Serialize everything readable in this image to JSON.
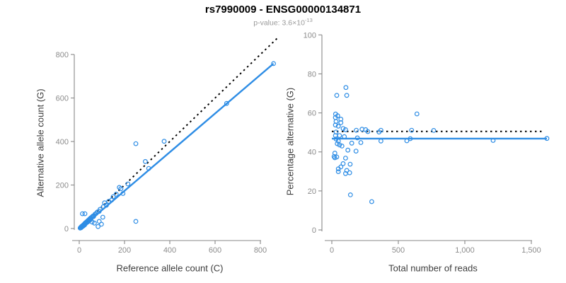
{
  "header": {
    "title": "rs7990009 - ENSG00000134871",
    "subtitle_prefix": "p-value: 3.6×10",
    "subtitle_exponent": "-13"
  },
  "colors": {
    "accent_blue": "#2E8DE5",
    "identity_black": "#000000",
    "axis_line": "#888888",
    "tick_label": "#8c8c8c",
    "axis_title": "#3d3d3d",
    "title": "#000000",
    "subtitle": "#9a9a9a",
    "background": "#ffffff"
  },
  "chart_data": [
    {
      "type": "scatter",
      "panel": "left",
      "title": "rs7990009 - ENSG00000134871",
      "subtitle": "p-value: 3.6×10^-13",
      "xlabel": "Reference allele count (C)",
      "ylabel": "Alternative allele count (G)",
      "xlim": [
        0,
        880
      ],
      "ylim": [
        0,
        880
      ],
      "grid": false,
      "xticks": {
        "values": [
          0,
          200,
          400,
          600,
          800
        ],
        "labels": [
          "0",
          "200",
          "400",
          "600",
          "800"
        ]
      },
      "yticks": {
        "values": [
          0,
          200,
          400,
          600,
          800
        ],
        "labels": [
          "0",
          "200",
          "400",
          "600",
          "800"
        ]
      },
      "point_color": "#2E8DE5",
      "points": [
        [
          4,
          2
        ],
        [
          6,
          5
        ],
        [
          8,
          4
        ],
        [
          9,
          8
        ],
        [
          11,
          7
        ],
        [
          12,
          11
        ],
        [
          14,
          9
        ],
        [
          15,
          13
        ],
        [
          17,
          15
        ],
        [
          18,
          12
        ],
        [
          20,
          18
        ],
        [
          22,
          20
        ],
        [
          24,
          17
        ],
        [
          25,
          24
        ],
        [
          27,
          22
        ],
        [
          28,
          27
        ],
        [
          30,
          25
        ],
        [
          32,
          30
        ],
        [
          34,
          28
        ],
        [
          36,
          34
        ],
        [
          38,
          31
        ],
        [
          40,
          38
        ],
        [
          42,
          35
        ],
        [
          45,
          43
        ],
        [
          48,
          40
        ],
        [
          50,
          48
        ],
        [
          52,
          44
        ],
        [
          55,
          52
        ],
        [
          57,
          30
        ],
        [
          60,
          57
        ],
        [
          63,
          55
        ],
        [
          65,
          60
        ],
        [
          67,
          25
        ],
        [
          70,
          66
        ],
        [
          75,
          70
        ],
        [
          80,
          76
        ],
        [
          83,
          9
        ],
        [
          88,
          33
        ],
        [
          88,
          79
        ],
        [
          92,
          88
        ],
        [
          98,
          20
        ],
        [
          104,
          52
        ],
        [
          106,
          100
        ],
        [
          112,
          118
        ],
        [
          120,
          107
        ],
        [
          14,
          68
        ],
        [
          25,
          68
        ],
        [
          130,
          125
        ],
        [
          143,
          131
        ],
        [
          150,
          146
        ],
        [
          163,
          158
        ],
        [
          177,
          189
        ],
        [
          184,
          183
        ],
        [
          193,
          161
        ],
        [
          215,
          205
        ],
        [
          250,
          390
        ],
        [
          250,
          33
        ],
        [
          292,
          308
        ],
        [
          307,
          276
        ],
        [
          375,
          401
        ],
        [
          651,
          575
        ],
        [
          858,
          758
        ]
      ],
      "lines": [
        {
          "name": "identity-line",
          "style": "dotted",
          "color": "#000000",
          "x1": 0,
          "y1": 0,
          "x2": 878,
          "y2": 878
        },
        {
          "name": "fit-line",
          "style": "solid",
          "color": "#2E8DE5",
          "x1": 5,
          "y1": 0,
          "x2": 858,
          "y2": 758
        }
      ]
    },
    {
      "type": "scatter",
      "panel": "right",
      "xlabel": "Total number of reads",
      "ylabel": "Percentage alternative (G)",
      "xlim": [
        0,
        1650
      ],
      "ylim": [
        0,
        100
      ],
      "grid": false,
      "xticks": {
        "values": [
          0,
          500,
          1000,
          1500
        ],
        "labels": [
          "0",
          "500",
          "1,000",
          "1,500"
        ]
      },
      "yticks": {
        "values": [
          0,
          20,
          40,
          60,
          80,
          100
        ],
        "labels": [
          "0",
          "20",
          "40",
          "60",
          "80",
          "100"
        ]
      },
      "point_color": "#2E8DE5",
      "points": [
        [
          17,
          37.6
        ],
        [
          23,
          39.4
        ],
        [
          23,
          37
        ],
        [
          27,
          57.6
        ],
        [
          27,
          53.8
        ],
        [
          27,
          48.4
        ],
        [
          28,
          59.4
        ],
        [
          32,
          55.6
        ],
        [
          32,
          50.2
        ],
        [
          32,
          46.6
        ],
        [
          37,
          69
        ],
        [
          37,
          37.4
        ],
        [
          41,
          44.2
        ],
        [
          44,
          58.5
        ],
        [
          49,
          53.2
        ],
        [
          49,
          45.6
        ],
        [
          49,
          31.3
        ],
        [
          49,
          29.9
        ],
        [
          58,
          48.4
        ],
        [
          58,
          43.6
        ],
        [
          68,
          56.8
        ],
        [
          68,
          55
        ],
        [
          68,
          32.3
        ],
        [
          76,
          43
        ],
        [
          85,
          52
        ],
        [
          85,
          34
        ],
        [
          94,
          47.8
        ],
        [
          103,
          51.4
        ],
        [
          103,
          36.8
        ],
        [
          103,
          28.9
        ],
        [
          106,
          73
        ],
        [
          112,
          69
        ],
        [
          112,
          30.5
        ],
        [
          121,
          40.9
        ],
        [
          134,
          29.3
        ],
        [
          138,
          33.7
        ],
        [
          140,
          18
        ],
        [
          150,
          44.5
        ],
        [
          182,
          40.4
        ],
        [
          184,
          51.1
        ],
        [
          192,
          47.2
        ],
        [
          218,
          44.8
        ],
        [
          227,
          51.6
        ],
        [
          254,
          51.4
        ],
        [
          271,
          50.4
        ],
        [
          300,
          14.5
        ],
        [
          355,
          50.2
        ],
        [
          369,
          51.1
        ],
        [
          369,
          45.6
        ],
        [
          564,
          45.7
        ],
        [
          590,
          46.8
        ],
        [
          600,
          51.1
        ],
        [
          640,
          59.5
        ],
        [
          766,
          51
        ],
        [
          1213,
          45.9
        ],
        [
          1617,
          46.9
        ]
      ],
      "lines": [
        {
          "name": "null-line",
          "style": "dotted",
          "color": "#000000",
          "x1": 0,
          "y1": 50.5,
          "x2": 1590,
          "y2": 50.5
        },
        {
          "name": "fit-line",
          "style": "solid",
          "color": "#2E8DE5",
          "x1": 0,
          "y1": 46.8,
          "x2": 1617,
          "y2": 46.8
        }
      ]
    }
  ]
}
